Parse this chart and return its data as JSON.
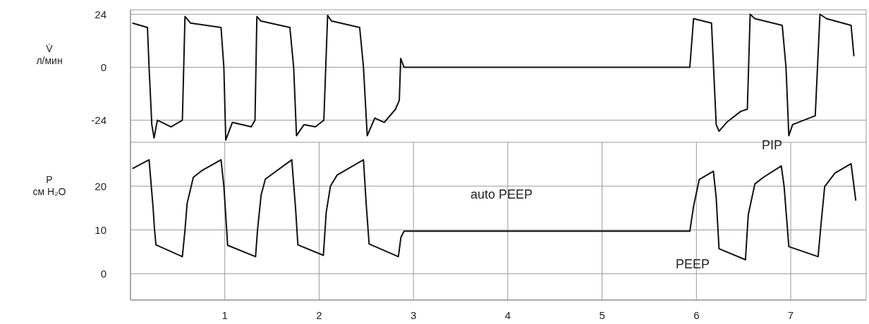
{
  "chart_data": [
    {
      "type": "line",
      "ylabel": "V̇\nл/мин",
      "xlim": [
        0,
        7.8
      ],
      "xticks": [
        1,
        2,
        3,
        4,
        5,
        6,
        7
      ],
      "ylim": [
        -34,
        26
      ],
      "yticks": [
        -24,
        0,
        24
      ],
      "grid": true,
      "tick_labels": "y",
      "marker": "none",
      "line_style": "solid",
      "series": [
        {
          "color": "#111111",
          "x": [
            0.02,
            0.18,
            0.197,
            0.226,
            0.25,
            0.285,
            0.43,
            0.55,
            0.578,
            0.637,
            0.96,
            0.99,
            1.01,
            1.08,
            1.28,
            1.32,
            1.34,
            1.38,
            1.69,
            1.73,
            1.76,
            1.84,
            1.96,
            2.05,
            2.09,
            2.13,
            2.43,
            2.47,
            2.51,
            2.59,
            2.69,
            2.81,
            2.85,
            2.865,
            2.9,
            5.93,
            5.97,
            6.16,
            6.21,
            6.24,
            6.32,
            6.47,
            6.54,
            6.57,
            6.62,
            6.91,
            6.95,
            6.98,
            7.02,
            7.26,
            7.31,
            7.38,
            7.64,
            7.67
          ],
          "values": [
            20,
            18,
            0,
            -26,
            -32,
            -24,
            -27,
            -24,
            23,
            20,
            18,
            0,
            -33,
            -25,
            -27,
            -24,
            23,
            21,
            18,
            0,
            -31,
            -26,
            -27,
            -24,
            23.5,
            21,
            18,
            0,
            -31,
            -23,
            -25,
            -19,
            -15,
            4,
            0,
            0,
            22,
            20,
            -26,
            -29,
            -25,
            -20,
            -19,
            24,
            22,
            19,
            0,
            -31,
            -26,
            -22,
            24,
            22,
            19,
            5
          ]
        }
      ]
    },
    {
      "type": "line",
      "ylabel": "P\nсм H₂O",
      "xlim": [
        0,
        7.8
      ],
      "xticks": [
        1,
        2,
        3,
        4,
        5,
        6,
        7
      ],
      "ylim": [
        -6,
        30
      ],
      "yticks": [
        0,
        10,
        20
      ],
      "grid": true,
      "marker": "none",
      "line_style": "solid",
      "annotations": [
        "auto PEEP",
        "PEEP",
        "PIP"
      ],
      "series": [
        {
          "color": "#111111",
          "x": [
            0.02,
            0.197,
            0.24,
            0.255,
            0.27,
            0.55,
            0.578,
            0.6,
            0.666,
            0.754,
            0.96,
            0.99,
            1.02,
            1.03,
            1.326,
            1.347,
            1.385,
            1.43,
            1.71,
            1.75,
            1.775,
            2.045,
            2.075,
            2.12,
            2.19,
            2.47,
            2.5,
            2.53,
            2.84,
            2.867,
            2.9,
            5.93,
            5.97,
            6.03,
            6.18,
            6.21,
            6.24,
            6.52,
            6.55,
            6.62,
            6.71,
            6.9,
            6.93,
            6.98,
            7.29,
            7.32,
            7.36,
            7.47,
            7.64,
            7.69
          ],
          "values": [
            24,
            26,
            15,
            10,
            6.6,
            3.9,
            10,
            16,
            22,
            23.5,
            26,
            20,
            10,
            6.5,
            3.9,
            10,
            18,
            21.6,
            26,
            15,
            6.6,
            4.2,
            14,
            20,
            22.5,
            26,
            15.6,
            6.8,
            3.9,
            8.3,
            9.7,
            9.7,
            15.4,
            21.5,
            23.4,
            17.3,
            5.7,
            3.2,
            13.5,
            20.5,
            22,
            24.6,
            19.9,
            6.2,
            3.9,
            11,
            19.9,
            23,
            25.1,
            16.7
          ]
        }
      ]
    }
  ]
}
